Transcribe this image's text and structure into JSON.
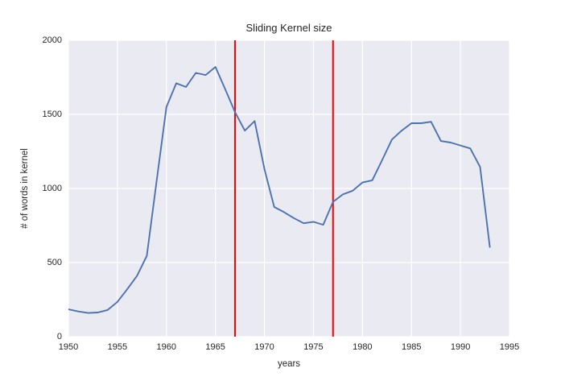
{
  "chart_data": {
    "type": "line",
    "title": "Sliding Kernel size",
    "xlabel": "years",
    "ylabel": "# of words in kernel",
    "xlim": [
      1950,
      1995
    ],
    "ylim": [
      0,
      2000
    ],
    "xticks": [
      1950,
      1955,
      1960,
      1965,
      1970,
      1975,
      1980,
      1985,
      1990,
      1995
    ],
    "yticks": [
      0,
      500,
      1000,
      1500,
      2000
    ],
    "grid": true,
    "legend": "none",
    "plot_background": "#EAEAF2",
    "grid_color": "#FFFFFF",
    "line_color": "#4C72B0",
    "vline_color": "#FF0000",
    "vlines": [
      1967,
      1977
    ],
    "series": [
      {
        "name": "words in kernel",
        "x": [
          1950,
          1951,
          1952,
          1953,
          1954,
          1955,
          1956,
          1957,
          1958,
          1959,
          1960,
          1961,
          1962,
          1963,
          1964,
          1965,
          1966,
          1967,
          1968,
          1969,
          1970,
          1971,
          1972,
          1973,
          1974,
          1975,
          1976,
          1977,
          1978,
          1979,
          1980,
          1981,
          1982,
          1983,
          1984,
          1985,
          1986,
          1987,
          1988,
          1989,
          1990,
          1991,
          1992,
          1993
        ],
        "y": [
          185,
          170,
          160,
          163,
          180,
          235,
          320,
          410,
          545,
          1050,
          1550,
          1710,
          1685,
          1780,
          1765,
          1820,
          1670,
          1515,
          1390,
          1455,
          1130,
          875,
          840,
          800,
          765,
          775,
          755,
          910,
          960,
          985,
          1040,
          1055,
          1190,
          1330,
          1390,
          1440,
          1440,
          1450,
          1320,
          1310,
          1290,
          1270,
          1145,
          605
        ]
      }
    ]
  }
}
